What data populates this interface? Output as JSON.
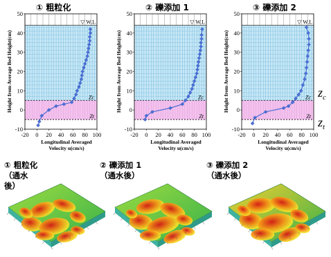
{
  "panel_titles": [
    "① 粗粒化",
    "② 礫添加 1",
    "③ 礫添加 2"
  ],
  "water_level_label": "▽ W.L",
  "zc_label": "Zc",
  "zt_label": "Zt",
  "side_zc_label": "zc",
  "side_zt_label": "zt",
  "surface_titles": [
    {
      "line1": "① 粗粒化",
      "line2": "（通水",
      "line3": "後）"
    },
    {
      "line1": "② 礫添加 1",
      "line2": "（通水後）",
      "line3": ""
    },
    {
      "line1": "③ 礫添加 2",
      "line2": "（通水後）",
      "line3": ""
    }
  ],
  "colors": {
    "upper_band": "#c6e7f6",
    "lower_band": "#f4c2ee",
    "grid": "#2a8fc6",
    "profile": "#4b6fd6"
  },
  "chart_data": [
    {
      "type": "line",
      "title": "① 粗粒化",
      "xlabel": "Longitudinal Averaged Velocity u(cm/s)",
      "ylabel": "Height from Average Bed Height(cm)",
      "xlim": [
        -20,
        100
      ],
      "ylim": [
        -10,
        50
      ],
      "xticks": [
        -20,
        0,
        20,
        40,
        60,
        80,
        100
      ],
      "yticks": [
        -10,
        0,
        10,
        20,
        30,
        40,
        50
      ],
      "zc": 5,
      "zt": -5,
      "water_level": 44,
      "series": [
        {
          "x": [
            2,
            4,
            8,
            20,
            32,
            45,
            58,
            62,
            65,
            67,
            70,
            72,
            74,
            75,
            76,
            78,
            80,
            82,
            84,
            85,
            86,
            87,
            88,
            88,
            89,
            89
          ],
          "y": [
            -8,
            -6,
            -3,
            0,
            2,
            3,
            4,
            6,
            8,
            10,
            12,
            14,
            16,
            18,
            20,
            22,
            24,
            26,
            28,
            30,
            32,
            34,
            36,
            38,
            40,
            42
          ]
        }
      ]
    },
    {
      "type": "line",
      "title": "② 礫添加 1",
      "xlabel": "Longitudinal Averaged Velocity u(cm/s)",
      "ylabel": "Height from Average Bed Height(cm)",
      "xlim": [
        -20,
        100
      ],
      "ylim": [
        -10,
        50
      ],
      "xticks": [
        -20,
        0,
        20,
        40,
        60,
        80,
        100
      ],
      "yticks": [
        -10,
        0,
        10,
        20,
        30,
        40,
        50
      ],
      "zc": 5,
      "zt": -5,
      "water_level": 44,
      "series": [
        {
          "x": [
            -2,
            0,
            10,
            40,
            60,
            65,
            70,
            73,
            76,
            78,
            80,
            82,
            84,
            85,
            86,
            87,
            88,
            89,
            90,
            91,
            91,
            92,
            92,
            93
          ],
          "y": [
            -5,
            -3,
            -1,
            1,
            3,
            5,
            7,
            9,
            11,
            13,
            15,
            17,
            19,
            21,
            23,
            25,
            27,
            29,
            31,
            33,
            35,
            37,
            39,
            42
          ]
        }
      ]
    },
    {
      "type": "line",
      "title": "③ 礫添加 2",
      "xlabel": "Longitudinal Averaged Velocity u(cm/s)",
      "ylabel": "Height from Average Bed Height(cm)",
      "xlim": [
        -20,
        100
      ],
      "ylim": [
        -10,
        50
      ],
      "xticks": [
        -20,
        0,
        20,
        40,
        60,
        80,
        100
      ],
      "yticks": [
        -10,
        0,
        10,
        20,
        30,
        40,
        50
      ],
      "zc": 5,
      "zt": -5,
      "water_level": 44,
      "series": [
        {
          "x": [
            -2,
            2,
            20,
            50,
            58,
            65,
            70,
            75,
            79,
            82,
            85,
            87,
            88,
            89,
            90,
            91,
            92,
            92,
            91,
            88
          ],
          "y": [
            -7,
            -4,
            -1,
            1,
            2,
            4,
            6,
            8,
            10,
            13,
            16,
            19,
            22,
            25,
            28,
            31,
            34,
            37,
            40,
            43
          ]
        }
      ]
    }
  ]
}
